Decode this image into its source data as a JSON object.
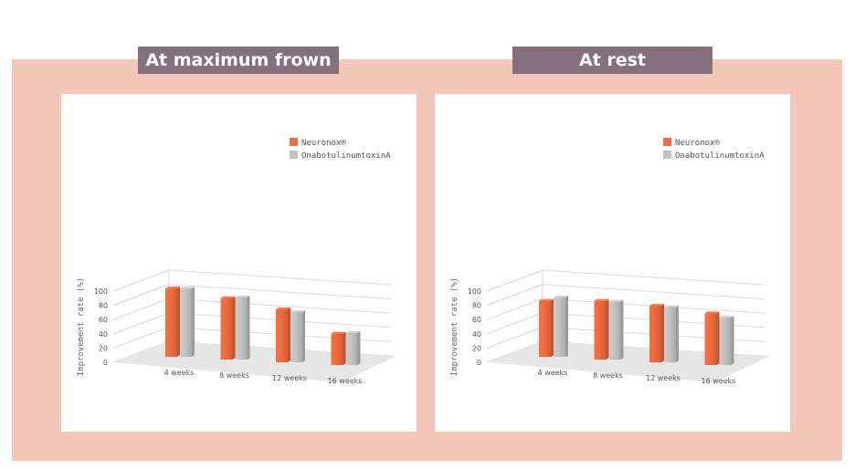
{
  "colors": {
    "neuronox": "#ef6a3d",
    "onabotulinumtoxina": "#c2c2c2",
    "frame": "#f2c7b8",
    "tab": "#85707f"
  },
  "chart_data": [
    {
      "type": "bar",
      "title": "At maximum frown",
      "ylabel": "Improvement rate (%)",
      "ylim": [
        0,
        100
      ],
      "yticks": [
        "0",
        "20",
        "40",
        "60",
        "80",
        "100"
      ],
      "categories": [
        "4 weeks",
        "8 weeks",
        "12 weeks",
        "16 weeks"
      ],
      "series": [
        {
          "name": "Neuronox®",
          "values": [
            98,
            88,
            76,
            45
          ]
        },
        {
          "name": "OnabotulinumtoxinA",
          "values": [
            98,
            89,
            72,
            46
          ]
        }
      ],
      "legend": "top-right",
      "grid": true
    },
    {
      "type": "bar",
      "title": "At rest",
      "ylabel": "Improvement rate (%)",
      "ylim": [
        0,
        100
      ],
      "yticks": [
        "0",
        "20",
        "40",
        "60",
        "80",
        "100"
      ],
      "categories": [
        "4 weeks",
        "8 weeks",
        "12 weeks",
        "16 weeks"
      ],
      "series": [
        {
          "name": "Neuronox®",
          "values": [
            80,
            84,
            81,
            74
          ]
        },
        {
          "name": "OnabotulinumtoxinA",
          "values": [
            85,
            83,
            79,
            68
          ]
        }
      ],
      "legend": "top-right",
      "grid": true
    }
  ]
}
